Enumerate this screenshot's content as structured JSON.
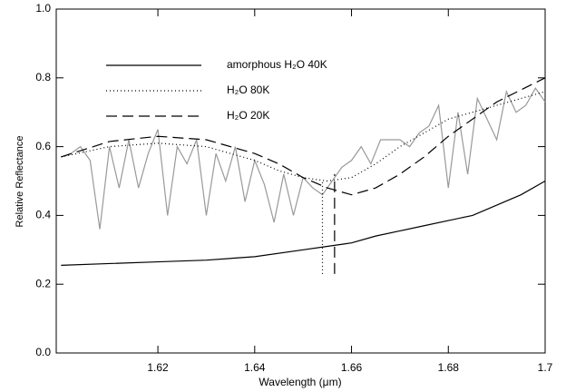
{
  "chart_data": {
    "type": "line",
    "x_label": "Wavelength (μm)",
    "y_label": "Relative Reflectance",
    "xlim": [
      1.599,
      1.7
    ],
    "ylim": [
      0,
      1
    ],
    "xticks": [
      1.62,
      1.64,
      1.66,
      1.68,
      1.7
    ],
    "yticks": [
      {
        "value": 0,
        "label": "0.0"
      },
      0.2,
      0.4,
      0.6,
      0.8,
      {
        "value": 1,
        "label": "1.0"
      }
    ],
    "legend": "upper left",
    "series": [
      {
        "color": "#999999",
        "style": "solid",
        "x": [
          1.6,
          1.602,
          1.604,
          1.606,
          1.608,
          1.61,
          1.612,
          1.614,
          1.616,
          1.618,
          1.62,
          1.622,
          1.624,
          1.626,
          1.628,
          1.63,
          1.632,
          1.634,
          1.636,
          1.638,
          1.64,
          1.642,
          1.644,
          1.646,
          1.648,
          1.65,
          1.652,
          1.654,
          1.656,
          1.658,
          1.66,
          1.662,
          1.664,
          1.666,
          1.668,
          1.67,
          1.672,
          1.674,
          1.676,
          1.678,
          1.68,
          1.682,
          1.684,
          1.686,
          1.688,
          1.69,
          1.692,
          1.694,
          1.696,
          1.698,
          1.7
        ],
        "values": [
          0.57,
          0.58,
          0.6,
          0.56,
          0.36,
          0.6,
          0.48,
          0.62,
          0.48,
          0.58,
          0.65,
          0.4,
          0.6,
          0.55,
          0.62,
          0.4,
          0.58,
          0.5,
          0.6,
          0.44,
          0.56,
          0.49,
          0.38,
          0.52,
          0.4,
          0.51,
          0.48,
          0.46,
          0.5,
          0.54,
          0.56,
          0.6,
          0.55,
          0.62,
          0.62,
          0.62,
          0.6,
          0.64,
          0.66,
          0.72,
          0.48,
          0.7,
          0.52,
          0.74,
          0.68,
          0.62,
          0.76,
          0.7,
          0.72,
          0.77,
          0.73
        ]
      },
      {
        "name": "amorphous H₂O 40K",
        "color": "#000000",
        "style": "solid",
        "x": [
          1.6,
          1.61,
          1.62,
          1.63,
          1.64,
          1.65,
          1.655,
          1.66,
          1.665,
          1.67,
          1.675,
          1.68,
          1.685,
          1.69,
          1.695,
          1.7
        ],
        "values": [
          0.255,
          0.26,
          0.265,
          0.27,
          0.28,
          0.3,
          0.31,
          0.32,
          0.34,
          0.355,
          0.37,
          0.385,
          0.4,
          0.43,
          0.46,
          0.5
        ]
      },
      {
        "name": "H₂O 80K",
        "color": "#000000",
        "style": "dotted",
        "x": [
          1.6,
          1.61,
          1.62,
          1.63,
          1.64,
          1.645,
          1.65,
          1.655,
          1.66,
          1.665,
          1.67,
          1.675,
          1.68,
          1.69,
          1.7
        ],
        "values": [
          0.57,
          0.6,
          0.61,
          0.6,
          0.56,
          0.53,
          0.51,
          0.5,
          0.51,
          0.55,
          0.6,
          0.64,
          0.68,
          0.72,
          0.76
        ]
      },
      {
        "name": "H₂O 20K",
        "color": "#000000",
        "style": "dashed",
        "x": [
          1.6,
          1.61,
          1.62,
          1.63,
          1.64,
          1.645,
          1.65,
          1.655,
          1.66,
          1.665,
          1.67,
          1.675,
          1.68,
          1.69,
          1.7
        ],
        "values": [
          0.57,
          0.615,
          0.63,
          0.62,
          0.58,
          0.55,
          0.51,
          0.48,
          0.46,
          0.48,
          0.52,
          0.57,
          0.63,
          0.73,
          0.8
        ]
      }
    ],
    "vlines": [
      {
        "x": 1.654,
        "ylim": [
          0.23,
          0.5
        ],
        "style": "dotted"
      },
      {
        "x": 1.6565,
        "ylim": [
          0.23,
          0.52
        ],
        "style": "dashed"
      }
    ]
  }
}
